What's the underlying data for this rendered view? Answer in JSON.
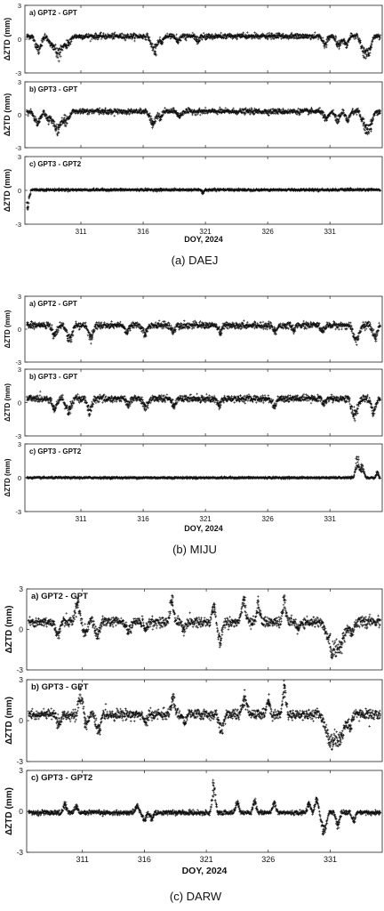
{
  "chart_data": [
    {
      "type": "scatter",
      "station": "DAEJ",
      "caption": "(a) DAEJ",
      "xlabel": "DOY, 2024",
      "xlim": [
        306.5,
        335.2
      ],
      "xticks": [
        311,
        316,
        321,
        326,
        331
      ],
      "panels": [
        {
          "title": "a) GPT2 - GPT",
          "ylabel": "ΔZTD (mm)",
          "ylim": [
            -3,
            3
          ],
          "yticks": [
            -3,
            0,
            3
          ],
          "baseline": 0.25,
          "noise": 0.12,
          "events": [
            [
              307.6,
              -1.6,
              0.5
            ],
            [
              308.6,
              -1.0,
              0.4
            ],
            [
              309.2,
              -2.3,
              0.6
            ],
            [
              309.9,
              -1.1,
              0.5
            ],
            [
              316.9,
              -1.7,
              0.5
            ],
            [
              317.5,
              -0.7,
              0.3
            ],
            [
              318.8,
              -0.6,
              0.3
            ],
            [
              320.4,
              -0.5,
              0.3
            ],
            [
              330.6,
              -0.9,
              0.4
            ],
            [
              331.7,
              -1.0,
              0.4
            ],
            [
              332.3,
              -1.0,
              0.4
            ],
            [
              333.8,
              -2.0,
              0.6
            ],
            [
              334.2,
              -1.1,
              0.4
            ]
          ]
        },
        {
          "title": "b) GPT3 - GPT",
          "ylabel": "ΔZTD (mm)",
          "ylim": [
            -3,
            3
          ],
          "yticks": [
            -3,
            0,
            3
          ],
          "baseline": 0.3,
          "noise": 0.12,
          "events": [
            [
              307.5,
              -1.5,
              0.5
            ],
            [
              308.4,
              -1.1,
              0.4
            ],
            [
              309.1,
              -2.4,
              0.6
            ],
            [
              309.8,
              -1.2,
              0.5
            ],
            [
              316.8,
              -1.6,
              0.5
            ],
            [
              317.4,
              -0.8,
              0.3
            ],
            [
              318.9,
              -0.6,
              0.3
            ],
            [
              330.7,
              -0.9,
              0.4
            ],
            [
              331.6,
              -1.1,
              0.4
            ],
            [
              332.4,
              -1.0,
              0.4
            ],
            [
              333.9,
              -2.1,
              0.6
            ],
            [
              334.3,
              -1.2,
              0.4
            ]
          ]
        },
        {
          "title": "c) GPT3 - GPT2",
          "ylabel": "ΔZTD (mm)",
          "ylim": [
            -3,
            3
          ],
          "yticks": [
            -3,
            0,
            3
          ],
          "baseline": 0.05,
          "noise": 0.05,
          "events": [
            [
              306.7,
              -1.9,
              0.3
            ],
            [
              320.8,
              -0.35,
              0.2
            ]
          ]
        }
      ]
    },
    {
      "type": "scatter",
      "station": "MIJU",
      "caption": "(b) MIJU",
      "xlabel": "DOY, 2024",
      "xlim": [
        306.5,
        335.2
      ],
      "xticks": [
        311,
        316,
        321,
        326,
        331
      ],
      "panels": [
        {
          "title": "a) GPT2 - GPT",
          "ylabel": "ΔZTD (mm)",
          "ylim": [
            -3,
            3
          ],
          "yticks": [
            -3,
            0,
            3
          ],
          "baseline": 0.35,
          "noise": 0.15,
          "events": [
            [
              308.9,
              -1.3,
              0.4
            ],
            [
              310.1,
              -1.6,
              0.5
            ],
            [
              311.8,
              -1.5,
              0.4
            ],
            [
              314.7,
              -0.9,
              0.3
            ],
            [
              316.1,
              -1.0,
              0.4
            ],
            [
              318.4,
              -0.8,
              0.3
            ],
            [
              322.2,
              -0.9,
              0.3
            ],
            [
              326.6,
              -0.8,
              0.3
            ],
            [
              328.1,
              -0.7,
              0.3
            ],
            [
              330.4,
              -0.7,
              0.3
            ],
            [
              333.1,
              -1.9,
              0.5
            ],
            [
              334.6,
              -1.5,
              0.4
            ]
          ]
        },
        {
          "title": "b) GPT3 - GPT",
          "ylabel": "ΔZTD (mm)",
          "ylim": [
            -3,
            3
          ],
          "yticks": [
            -3,
            0,
            3
          ],
          "baseline": 0.35,
          "noise": 0.15,
          "events": [
            [
              308.9,
              -1.4,
              0.4
            ],
            [
              310.0,
              -1.5,
              0.5
            ],
            [
              311.7,
              -1.6,
              0.4
            ],
            [
              314.8,
              -0.8,
              0.3
            ],
            [
              316.2,
              -1.1,
              0.4
            ],
            [
              318.5,
              -0.9,
              0.3
            ],
            [
              322.1,
              -0.8,
              0.3
            ],
            [
              326.5,
              -0.9,
              0.3
            ],
            [
              330.5,
              -0.7,
              0.3
            ],
            [
              333.0,
              -2.1,
              0.5
            ],
            [
              334.5,
              -1.6,
              0.4
            ]
          ]
        },
        {
          "title": "c) GPT3 - GPT2",
          "ylabel": "ΔZTD (mm)",
          "ylim": [
            -3,
            3
          ],
          "yticks": [
            -3,
            0,
            3
          ],
          "baseline": 0.0,
          "noise": 0.04,
          "events": [
            [
              333.2,
              1.9,
              0.3
            ],
            [
              333.6,
              1.2,
              0.3
            ],
            [
              334.8,
              0.6,
              0.2
            ]
          ]
        }
      ]
    },
    {
      "type": "scatter",
      "station": "DARW",
      "caption": "(c) DARW",
      "xlabel": "DOY, 2024",
      "xlim": [
        306.5,
        335.2
      ],
      "xticks": [
        311,
        316,
        321,
        326,
        331
      ],
      "panels": [
        {
          "title": "a) GPT2 - GPT",
          "ylabel": "ΔZTD (mm)",
          "ylim": [
            -3,
            3
          ],
          "yticks": [
            -3,
            0,
            3
          ],
          "baseline": 0.55,
          "noise": 0.18,
          "events": [
            [
              309.0,
              -1.3,
              0.4
            ],
            [
              310.6,
              2.0,
              0.4
            ],
            [
              311.2,
              -1.0,
              0.4
            ],
            [
              312.2,
              -1.4,
              0.4
            ],
            [
              314.7,
              -0.9,
              0.4
            ],
            [
              316.1,
              -0.7,
              0.3
            ],
            [
              318.2,
              2.0,
              0.3
            ],
            [
              319.2,
              -0.8,
              0.3
            ],
            [
              321.6,
              1.6,
              0.3
            ],
            [
              322.1,
              -1.8,
              0.4
            ],
            [
              324.0,
              2.0,
              0.4
            ],
            [
              325.2,
              1.6,
              0.3
            ],
            [
              327.3,
              2.0,
              0.3
            ],
            [
              328.4,
              -0.7,
              0.3
            ],
            [
              331.2,
              -2.7,
              0.9
            ],
            [
              331.9,
              -2.0,
              0.6
            ],
            [
              332.7,
              -1.1,
              0.4
            ]
          ]
        },
        {
          "title": "b) GPT3 - GPT",
          "ylabel": "ΔZTD (mm)",
          "ylim": [
            -3,
            3
          ],
          "yticks": [
            -3,
            0,
            3
          ],
          "baseline": 0.45,
          "noise": 0.18,
          "events": [
            [
              309.1,
              -1.0,
              0.4
            ],
            [
              310.9,
              1.9,
              0.4
            ],
            [
              311.3,
              -1.1,
              0.4
            ],
            [
              312.3,
              -1.6,
              0.4
            ],
            [
              316.1,
              -0.8,
              0.3
            ],
            [
              318.3,
              1.7,
              0.3
            ],
            [
              319.3,
              -0.8,
              0.3
            ],
            [
              322.2,
              -1.5,
              0.4
            ],
            [
              324.1,
              1.6,
              0.4
            ],
            [
              326.0,
              1.5,
              0.3
            ],
            [
              327.3,
              2.5,
              0.3
            ],
            [
              331.1,
              -2.8,
              0.9
            ],
            [
              331.9,
              -2.1,
              0.6
            ],
            [
              332.6,
              -1.2,
              0.4
            ]
          ]
        },
        {
          "title": "c) GPT3 - GPT2",
          "ylabel": "ΔZTD (mm)",
          "ylim": [
            -3,
            3
          ],
          "yticks": [
            -3,
            0,
            3
          ],
          "baseline": -0.1,
          "noise": 0.08,
          "events": [
            [
              309.6,
              0.8,
              0.3
            ],
            [
              310.5,
              0.6,
              0.3
            ],
            [
              315.4,
              0.6,
              0.3
            ],
            [
              316.0,
              -0.7,
              0.3
            ],
            [
              316.6,
              -0.6,
              0.3
            ],
            [
              321.6,
              2.5,
              0.3
            ],
            [
              323.5,
              0.9,
              0.3
            ],
            [
              324.9,
              1.1,
              0.3
            ],
            [
              326.5,
              0.9,
              0.3
            ],
            [
              329.3,
              0.8,
              0.3
            ],
            [
              329.9,
              1.3,
              0.3
            ],
            [
              330.5,
              -1.8,
              0.4
            ],
            [
              331.6,
              -1.2,
              0.3
            ],
            [
              332.9,
              -0.8,
              0.3
            ]
          ]
        }
      ]
    }
  ]
}
